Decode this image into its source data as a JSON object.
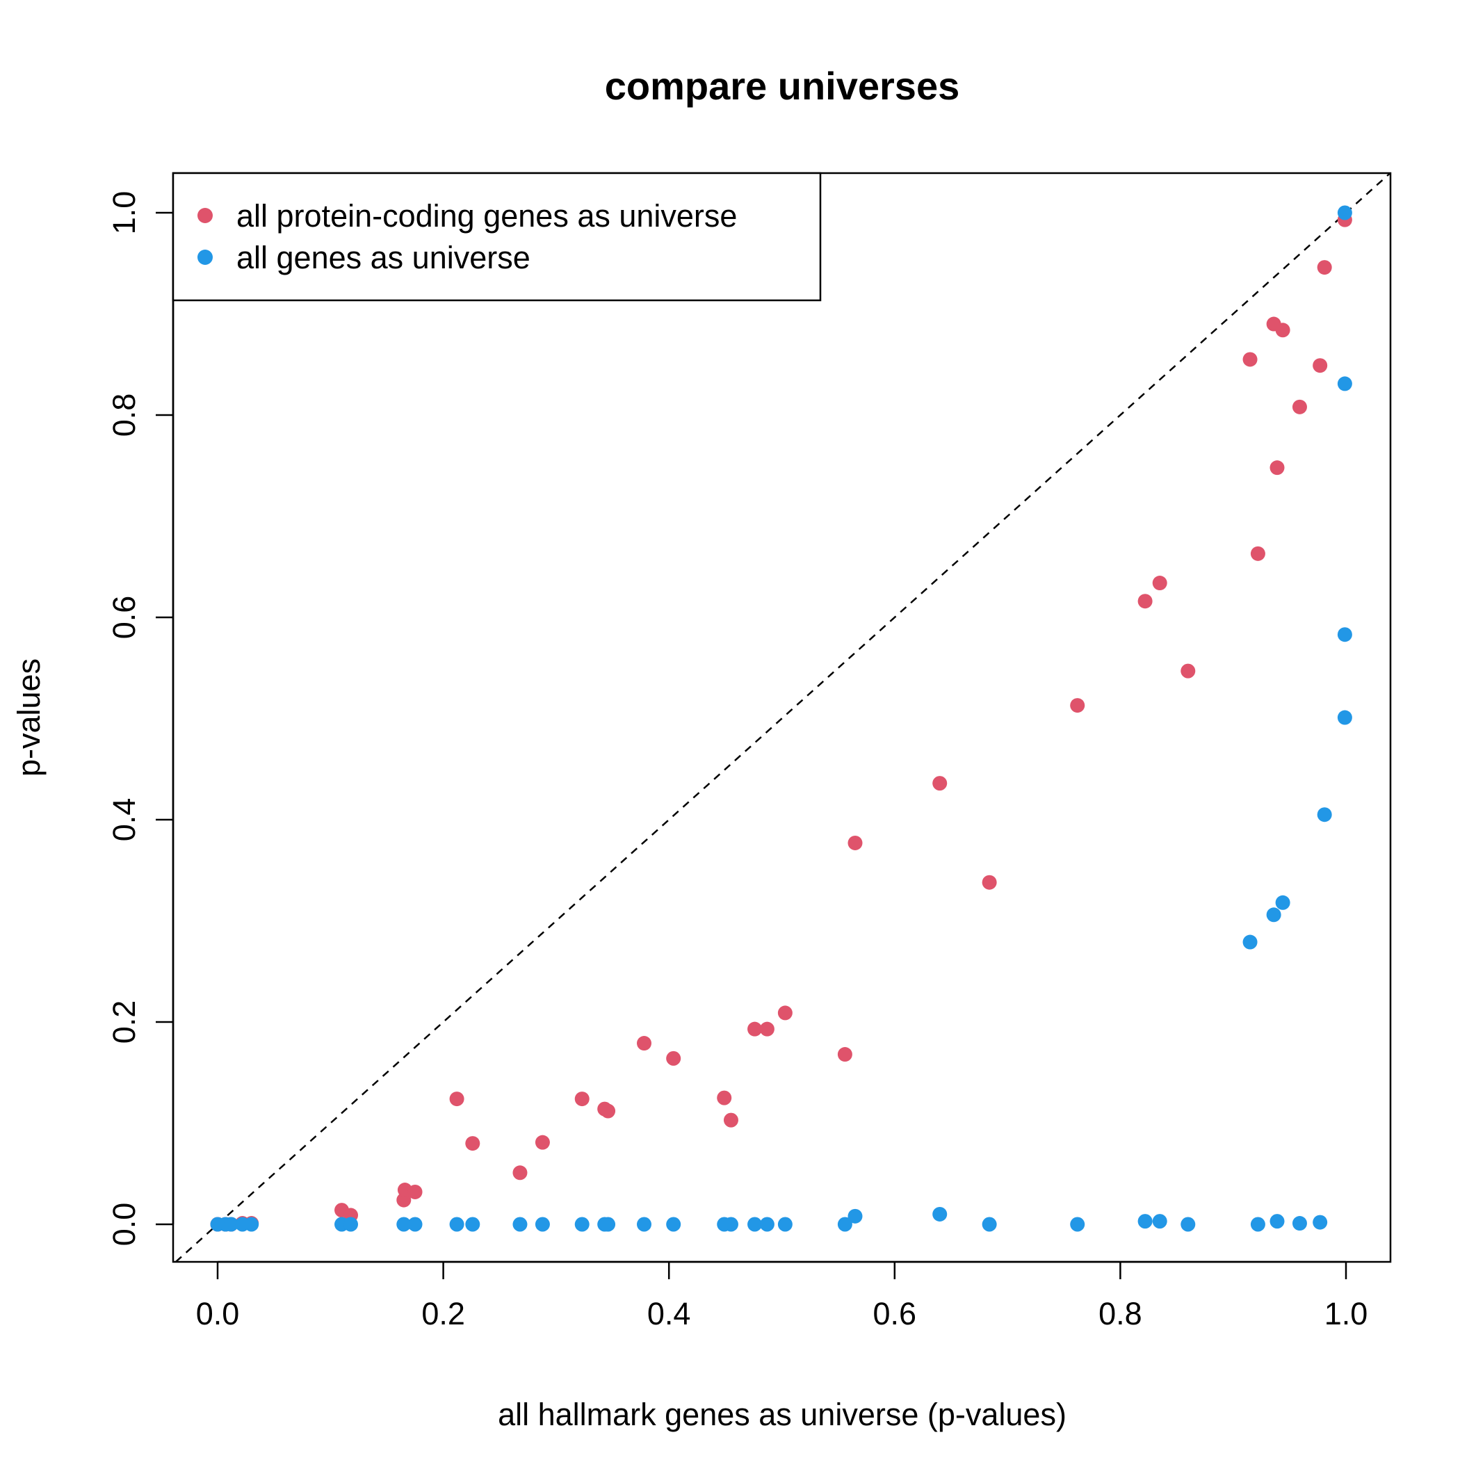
{
  "chart_data": {
    "type": "scatter",
    "title": "compare universes",
    "xlabel": "all hallmark genes as universe (p-values)",
    "ylabel": "p-values",
    "xlim": [
      0,
      1
    ],
    "ylim": [
      0,
      1
    ],
    "xticks": [
      "0.0",
      "0.2",
      "0.4",
      "0.6",
      "0.8",
      "1.0"
    ],
    "yticks": [
      "0.0",
      "0.2",
      "0.4",
      "0.6",
      "0.8",
      "1.0"
    ],
    "grid": false,
    "legend_position": "top-left",
    "reference_line": "y = x (dashed)",
    "series": [
      {
        "name": "all protein-coding genes as universe",
        "color": "#DF536B",
        "points": [
          [
            0.0,
            0.0
          ],
          [
            0.007,
            0.0
          ],
          [
            0.012,
            0.0
          ],
          [
            0.022,
            0.001
          ],
          [
            0.03,
            0.001
          ],
          [
            0.11,
            0.014
          ],
          [
            0.118,
            0.009
          ],
          [
            0.165,
            0.024
          ],
          [
            0.166,
            0.034
          ],
          [
            0.175,
            0.032
          ],
          [
            0.212,
            0.124
          ],
          [
            0.226,
            0.08
          ],
          [
            0.268,
            0.051
          ],
          [
            0.288,
            0.081
          ],
          [
            0.323,
            0.124
          ],
          [
            0.343,
            0.114
          ],
          [
            0.346,
            0.112
          ],
          [
            0.378,
            0.179
          ],
          [
            0.404,
            0.164
          ],
          [
            0.449,
            0.125
          ],
          [
            0.455,
            0.103
          ],
          [
            0.476,
            0.193
          ],
          [
            0.487,
            0.193
          ],
          [
            0.503,
            0.209
          ],
          [
            0.556,
            0.168
          ],
          [
            0.565,
            0.377
          ],
          [
            0.64,
            0.436
          ],
          [
            0.684,
            0.338
          ],
          [
            0.762,
            0.513
          ],
          [
            0.822,
            0.616
          ],
          [
            0.835,
            0.634
          ],
          [
            0.86,
            0.547
          ],
          [
            0.915,
            0.855
          ],
          [
            0.922,
            0.663
          ],
          [
            0.936,
            0.89
          ],
          [
            0.939,
            0.748
          ],
          [
            0.944,
            0.884
          ],
          [
            0.959,
            0.808
          ],
          [
            0.977,
            0.849
          ],
          [
            0.981,
            0.946
          ],
          [
            0.999,
            0.993
          ]
        ]
      },
      {
        "name": "all genes as universe",
        "color": "#2297E6",
        "points": [
          [
            0.0,
            0.0
          ],
          [
            0.007,
            0.0
          ],
          [
            0.012,
            0.0
          ],
          [
            0.022,
            0.0
          ],
          [
            0.03,
            0.0
          ],
          [
            0.11,
            0.0
          ],
          [
            0.118,
            0.0
          ],
          [
            0.165,
            0.0
          ],
          [
            0.175,
            0.0
          ],
          [
            0.212,
            0.0
          ],
          [
            0.226,
            0.0
          ],
          [
            0.268,
            0.0
          ],
          [
            0.288,
            0.0
          ],
          [
            0.323,
            0.0
          ],
          [
            0.343,
            0.0
          ],
          [
            0.346,
            0.0
          ],
          [
            0.378,
            0.0
          ],
          [
            0.404,
            0.0
          ],
          [
            0.449,
            0.0
          ],
          [
            0.455,
            0.0
          ],
          [
            0.476,
            0.0
          ],
          [
            0.487,
            0.0
          ],
          [
            0.503,
            0.0
          ],
          [
            0.556,
            0.0
          ],
          [
            0.565,
            0.008
          ],
          [
            0.64,
            0.01
          ],
          [
            0.684,
            0.0
          ],
          [
            0.762,
            0.0
          ],
          [
            0.822,
            0.003
          ],
          [
            0.835,
            0.003
          ],
          [
            0.86,
            0.0
          ],
          [
            0.915,
            0.279
          ],
          [
            0.922,
            0.0
          ],
          [
            0.936,
            0.306
          ],
          [
            0.939,
            0.003
          ],
          [
            0.944,
            0.318
          ],
          [
            0.959,
            0.001
          ],
          [
            0.977,
            0.002
          ],
          [
            0.981,
            0.405
          ],
          [
            0.999,
            0.501
          ],
          [
            0.999,
            0.583
          ],
          [
            0.999,
            0.831
          ],
          [
            0.999,
            1.0
          ]
        ]
      }
    ]
  }
}
